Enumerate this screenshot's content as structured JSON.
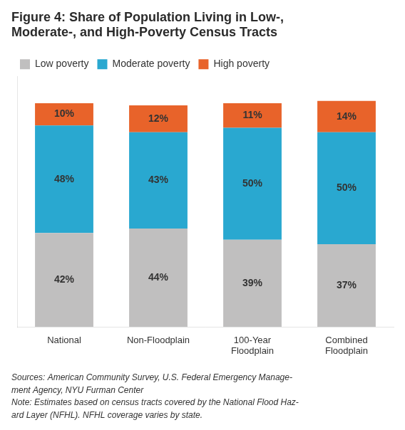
{
  "chart_data": {
    "type": "bar",
    "title": "Figure 4: Share of Population Living in Low-,\nModerate-, and High-Poverty Census Tracts",
    "categories": [
      "National",
      "Non-Floodplain",
      "100-Year\nFloodplain",
      "Combined\nFloodplain"
    ],
    "series": [
      {
        "name": "Low poverty",
        "color": "#c0bfbf",
        "values": [
          42,
          44,
          39,
          37
        ],
        "value_labels": [
          "42%",
          "44%",
          "39%",
          "37%"
        ]
      },
      {
        "name": "Moderate poverty",
        "color": "#29a8d0",
        "values": [
          48,
          43,
          50,
          50
        ],
        "value_labels": [
          "48%",
          "43%",
          "50%",
          "50%"
        ]
      },
      {
        "name": "High poverty",
        "color": "#e8632a",
        "values": [
          10,
          12,
          11,
          14
        ],
        "value_labels": [
          "10%",
          "12%",
          "11%",
          "14%"
        ]
      }
    ],
    "ylim": [
      0,
      112
    ],
    "stacked": true,
    "data_labels": true,
    "grid": false,
    "legend": "upper left",
    "tick_labels": "x",
    "source": "Sources: American Community Survey, U.S. Federal Emergency Manage-\nment Agency, NYU Furman Center\nNote: Estimates based on census tracts covered by the National Flood Haz-\nard Layer (NFHL). NFHL coverage varies by state."
  }
}
